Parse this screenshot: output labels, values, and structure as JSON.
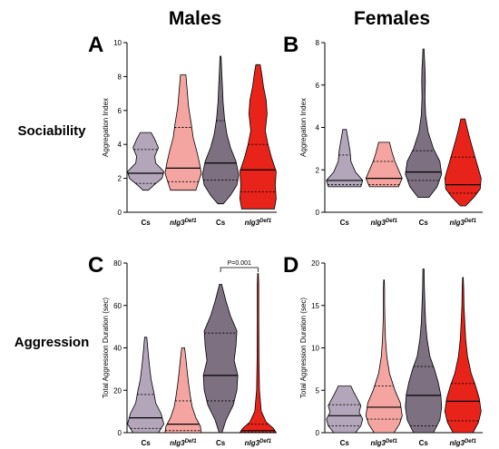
{
  "column_titles": [
    "Males",
    "Females"
  ],
  "row_labels": [
    "Sociability",
    "Aggression"
  ],
  "gene_base": "nlg3",
  "gene_superscript": "Def1",
  "colors": {
    "cs_light": "#b3a6bb",
    "nlg_light": "#f4a5a1",
    "cs_dark": "#7d7080",
    "nlg_dark": "#e8241a"
  },
  "chart_data": [
    {
      "type": "violin",
      "panel": "A",
      "ylabel": "Aggregation Index",
      "ylim": [
        0,
        10
      ],
      "yticks": [
        0,
        2,
        4,
        6,
        8,
        10
      ],
      "categories": [
        "Cs",
        "nlg3Def1",
        "Cs",
        "nlg3Def1"
      ],
      "series": [
        {
          "min": 1.3,
          "max": 4.7,
          "q1": 1.7,
          "median": 2.3,
          "q3": 3.7,
          "profile": [
            [
              1.3,
              0.15
            ],
            [
              1.6,
              0.45
            ],
            [
              2.0,
              0.9
            ],
            [
              2.4,
              1.0
            ],
            [
              2.9,
              0.55
            ],
            [
              3.3,
              0.5
            ],
            [
              3.8,
              0.7
            ],
            [
              4.3,
              0.5
            ],
            [
              4.7,
              0.3
            ]
          ]
        },
        {
          "min": 1.3,
          "max": 8.1,
          "q1": 1.8,
          "median": 2.6,
          "q3": 5.0,
          "profile": [
            [
              1.3,
              0.7
            ],
            [
              1.8,
              0.85
            ],
            [
              2.3,
              1.0
            ],
            [
              2.9,
              0.9
            ],
            [
              3.6,
              0.75
            ],
            [
              4.4,
              0.55
            ],
            [
              5.2,
              0.45
            ],
            [
              6.2,
              0.3
            ],
            [
              7.2,
              0.22
            ],
            [
              8.1,
              0.15
            ]
          ]
        },
        {
          "min": 0.5,
          "max": 9.2,
          "q1": 1.9,
          "median": 2.9,
          "q3": 5.4,
          "profile": [
            [
              0.5,
              0.15
            ],
            [
              1.0,
              0.55
            ],
            [
              1.6,
              0.9
            ],
            [
              2.2,
              1.0
            ],
            [
              3.0,
              0.85
            ],
            [
              3.8,
              0.55
            ],
            [
              4.6,
              0.35
            ],
            [
              5.5,
              0.22
            ],
            [
              6.5,
              0.14
            ],
            [
              7.5,
              0.1
            ],
            [
              8.4,
              0.06
            ],
            [
              9.2,
              0.03
            ]
          ]
        },
        {
          "min": 0.2,
          "max": 8.7,
          "q1": 1.2,
          "median": 2.5,
          "q3": 4.0,
          "profile": [
            [
              0.2,
              0.9
            ],
            [
              0.8,
              1.0
            ],
            [
              1.6,
              0.95
            ],
            [
              2.4,
              1.0
            ],
            [
              3.2,
              0.75
            ],
            [
              4.0,
              0.55
            ],
            [
              4.8,
              0.4
            ],
            [
              5.8,
              0.5
            ],
            [
              6.6,
              0.45
            ],
            [
              7.4,
              0.3
            ],
            [
              8.2,
              0.2
            ],
            [
              8.7,
              0.12
            ]
          ]
        }
      ]
    },
    {
      "type": "violin",
      "panel": "B",
      "ylabel": "Aggregation Index",
      "ylim": [
        0,
        8
      ],
      "yticks": [
        0,
        2,
        4,
        6,
        8
      ],
      "categories": [
        "Cs",
        "nlg3Def1",
        "Cs",
        "nlg3Def1"
      ],
      "series": [
        {
          "min": 1.2,
          "max": 3.9,
          "q1": 1.3,
          "median": 1.5,
          "q3": 2.7,
          "profile": [
            [
              1.2,
              0.9
            ],
            [
              1.5,
              1.0
            ],
            [
              1.9,
              0.6
            ],
            [
              2.4,
              0.35
            ],
            [
              2.9,
              0.3
            ],
            [
              3.4,
              0.2
            ],
            [
              3.9,
              0.1
            ]
          ]
        },
        {
          "min": 1.2,
          "max": 3.3,
          "q1": 1.3,
          "median": 1.6,
          "q3": 2.4,
          "profile": [
            [
              1.2,
              0.8
            ],
            [
              1.6,
              1.0
            ],
            [
              2.0,
              0.8
            ],
            [
              2.4,
              0.6
            ],
            [
              2.8,
              0.45
            ],
            [
              3.3,
              0.3
            ]
          ]
        },
        {
          "min": 0.7,
          "max": 7.7,
          "q1": 1.5,
          "median": 1.9,
          "q3": 2.9,
          "profile": [
            [
              0.7,
              0.3
            ],
            [
              1.2,
              0.75
            ],
            [
              1.8,
              1.0
            ],
            [
              2.4,
              0.9
            ],
            [
              3.0,
              0.55
            ],
            [
              3.8,
              0.25
            ],
            [
              4.6,
              0.12
            ],
            [
              5.4,
              0.08
            ],
            [
              6.2,
              0.1
            ],
            [
              6.8,
              0.08
            ],
            [
              7.3,
              0.05
            ],
            [
              7.7,
              0.03
            ]
          ]
        },
        {
          "min": 0.3,
          "max": 4.4,
          "q1": 0.9,
          "median": 1.3,
          "q3": 2.6,
          "profile": [
            [
              0.3,
              0.15
            ],
            [
              0.7,
              0.6
            ],
            [
              1.1,
              0.95
            ],
            [
              1.6,
              1.0
            ],
            [
              2.2,
              0.8
            ],
            [
              2.8,
              0.6
            ],
            [
              3.4,
              0.4
            ],
            [
              3.9,
              0.25
            ],
            [
              4.4,
              0.12
            ]
          ]
        }
      ]
    },
    {
      "type": "violin",
      "panel": "C",
      "ylabel": "Total Aggression Duration (sec)",
      "ylim": [
        0,
        80
      ],
      "yticks": [
        0,
        20,
        40,
        60,
        80
      ],
      "categories": [
        "Cs",
        "nlg3Def1",
        "Cs",
        "nlg3Def1"
      ],
      "annotation": {
        "text": "P=0.001",
        "between": [
          2,
          3
        ],
        "y": 80
      },
      "series": [
        {
          "min": 0,
          "max": 45,
          "q1": 2,
          "median": 7,
          "q3": 18,
          "profile": [
            [
              0,
              0.7
            ],
            [
              4,
              1.0
            ],
            [
              9,
              0.85
            ],
            [
              14,
              0.55
            ],
            [
              19,
              0.45
            ],
            [
              25,
              0.3
            ],
            [
              32,
              0.2
            ],
            [
              39,
              0.12
            ],
            [
              45,
              0.06
            ]
          ]
        },
        {
          "min": 0,
          "max": 40,
          "q1": 1,
          "median": 4,
          "q3": 15,
          "profile": [
            [
              0,
              1.0
            ],
            [
              3,
              0.95
            ],
            [
              7,
              0.7
            ],
            [
              12,
              0.5
            ],
            [
              17,
              0.4
            ],
            [
              23,
              0.3
            ],
            [
              29,
              0.22
            ],
            [
              35,
              0.15
            ],
            [
              40,
              0.08
            ]
          ]
        },
        {
          "min": 0,
          "max": 70,
          "q1": 15,
          "median": 27,
          "q3": 47,
          "profile": [
            [
              0,
              0.08
            ],
            [
              6,
              0.3
            ],
            [
              13,
              0.7
            ],
            [
              20,
              0.9
            ],
            [
              27,
              0.95
            ],
            [
              34,
              0.75
            ],
            [
              41,
              0.85
            ],
            [
              48,
              0.9
            ],
            [
              55,
              0.55
            ],
            [
              62,
              0.3
            ],
            [
              70,
              0.06
            ]
          ]
        },
        {
          "min": 0,
          "max": 75,
          "q1": 0.3,
          "median": 1,
          "q3": 4,
          "profile": [
            [
              0,
              1.0
            ],
            [
              2,
              0.85
            ],
            [
              5,
              0.45
            ],
            [
              10,
              0.18
            ],
            [
              20,
              0.08
            ],
            [
              35,
              0.05
            ],
            [
              55,
              0.04
            ],
            [
              70,
              0.04
            ],
            [
              75,
              0.02
            ]
          ]
        }
      ]
    },
    {
      "type": "violin",
      "panel": "D",
      "ylabel": "Total Aggression Duration (sec)",
      "ylim": [
        0,
        20
      ],
      "yticks": [
        0,
        5,
        10,
        15,
        20
      ],
      "categories": [
        "Cs",
        "nlg3Def1",
        "Cs",
        "nlg3Def1"
      ],
      "series": [
        {
          "min": 0,
          "max": 5.5,
          "q1": 0.8,
          "median": 2.0,
          "q3": 3.3,
          "profile": [
            [
              0,
              0.6
            ],
            [
              0.8,
              0.9
            ],
            [
              1.6,
              1.0
            ],
            [
              2.4,
              0.8
            ],
            [
              3.2,
              0.9
            ],
            [
              4.0,
              0.7
            ],
            [
              4.8,
              0.5
            ],
            [
              5.5,
              0.35
            ]
          ]
        },
        {
          "min": 0,
          "max": 18,
          "q1": 1.6,
          "median": 3.0,
          "q3": 5.5,
          "profile": [
            [
              0,
              0.55
            ],
            [
              1,
              0.85
            ],
            [
              2,
              1.0
            ],
            [
              3.5,
              0.9
            ],
            [
              5,
              0.6
            ],
            [
              7,
              0.3
            ],
            [
              9,
              0.15
            ],
            [
              11,
              0.08
            ],
            [
              13,
              0.05
            ],
            [
              15,
              0.03
            ],
            [
              17,
              0.03
            ],
            [
              18,
              0.02
            ]
          ]
        },
        {
          "min": 0,
          "max": 19.3,
          "q1": 0.8,
          "median": 4.4,
          "q3": 7.8,
          "profile": [
            [
              0,
              0.55
            ],
            [
              1.5,
              0.9
            ],
            [
              3,
              1.0
            ],
            [
              4.5,
              0.95
            ],
            [
              6,
              0.8
            ],
            [
              7.5,
              0.6
            ],
            [
              9,
              0.35
            ],
            [
              11,
              0.2
            ],
            [
              13,
              0.12
            ],
            [
              15,
              0.08
            ],
            [
              17,
              0.05
            ],
            [
              19.3,
              0.03
            ]
          ]
        },
        {
          "min": 0,
          "max": 18.3,
          "q1": 1.4,
          "median": 3.7,
          "q3": 5.8,
          "profile": [
            [
              0,
              0.55
            ],
            [
              1.2,
              0.85
            ],
            [
              2.5,
              1.0
            ],
            [
              4,
              0.9
            ],
            [
              5.5,
              0.7
            ],
            [
              7,
              0.45
            ],
            [
              9,
              0.25
            ],
            [
              11,
              0.15
            ],
            [
              13,
              0.1
            ],
            [
              15,
              0.06
            ],
            [
              17,
              0.04
            ],
            [
              18.3,
              0.02
            ]
          ]
        }
      ]
    }
  ]
}
